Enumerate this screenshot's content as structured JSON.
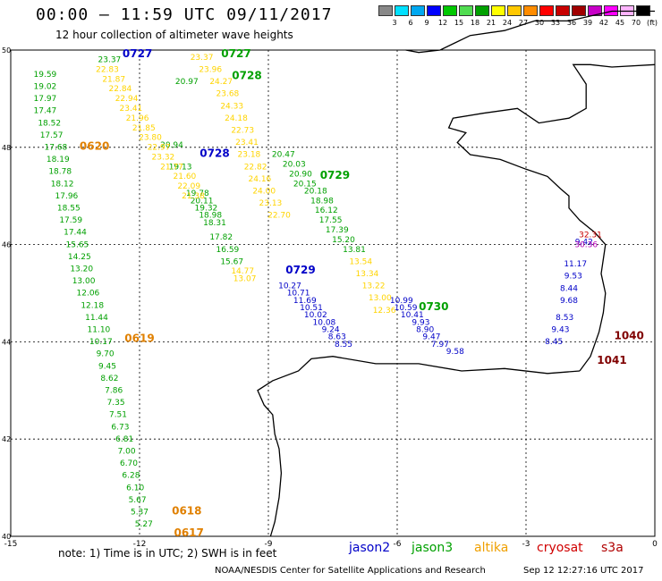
{
  "header": {
    "title": "00:00 – 11:59 UTC 09/11/2017",
    "subtitle": "12 hour collection of altimeter wave heights"
  },
  "legend": {
    "colors": [
      "#888888",
      "#00e0ff",
      "#00a8f0",
      "#0000ff",
      "#00c800",
      "#50dc50",
      "#00a000",
      "#ffff00",
      "#ffc800",
      "#ff8c00",
      "#ff0000",
      "#c80000",
      "#a00000",
      "#c800c8",
      "#ff00ff",
      "#ffb4ff",
      "#000000"
    ],
    "labels": [
      "3",
      "6",
      "9",
      "12",
      "15",
      "18",
      "21",
      "24",
      "27",
      "30",
      "33",
      "36",
      "39",
      "42",
      "45",
      "70"
    ],
    "unit": "(ft)"
  },
  "chart_data": {
    "type": "scatter",
    "title": "12 hour collection of altimeter wave heights",
    "xlabel": "",
    "ylabel": "",
    "xlim": [
      -15,
      0
    ],
    "ylim": [
      40,
      50
    ],
    "x_ticks": [
      "-15",
      "-12",
      "-9",
      "-6",
      "-3",
      "0"
    ],
    "y_ticks": [
      "40",
      "42",
      "44",
      "46",
      "48",
      "50"
    ],
    "grid": true,
    "series": [
      {
        "name": "jason3",
        "color": "#00a000",
        "points": [
          [
            -14.2,
            49.45,
            "19.59"
          ],
          [
            -14.2,
            49.2,
            "19.02"
          ],
          [
            -14.2,
            48.95,
            "17.97"
          ],
          [
            -14.2,
            48.7,
            "17.47"
          ],
          [
            -14.1,
            48.45,
            "18.52"
          ],
          [
            -14.05,
            48.2,
            "17.57"
          ],
          [
            -13.95,
            47.95,
            "17.68"
          ],
          [
            -13.9,
            47.7,
            "18.19"
          ],
          [
            -13.85,
            47.45,
            "18.78"
          ],
          [
            -13.8,
            47.2,
            "18.12"
          ],
          [
            -13.7,
            46.95,
            "17.96"
          ],
          [
            -13.65,
            46.7,
            "18.55"
          ],
          [
            -13.6,
            46.45,
            "17.59"
          ],
          [
            -13.5,
            46.2,
            "17.44"
          ],
          [
            -13.45,
            45.95,
            "15.65"
          ],
          [
            -13.4,
            45.7,
            "14.25"
          ],
          [
            -13.35,
            45.45,
            "13.20"
          ],
          [
            -13.3,
            45.2,
            "13.00"
          ],
          [
            -13.2,
            44.95,
            "12.06"
          ],
          [
            -13.1,
            44.7,
            "12.18"
          ],
          [
            -13.0,
            44.45,
            "11.44"
          ],
          [
            -12.95,
            44.2,
            "11.10"
          ],
          [
            -12.9,
            43.95,
            "10.17"
          ],
          [
            -12.8,
            43.7,
            "9.70"
          ],
          [
            -12.75,
            43.45,
            "9.45"
          ],
          [
            -12.7,
            43.2,
            "8.62"
          ],
          [
            -12.6,
            42.95,
            "7.86"
          ],
          [
            -12.55,
            42.7,
            "7.35"
          ],
          [
            -12.5,
            42.45,
            "7.51"
          ],
          [
            -12.45,
            42.2,
            "6.73"
          ],
          [
            -12.35,
            41.95,
            "6.81"
          ],
          [
            -12.3,
            41.7,
            "7.00"
          ],
          [
            -12.25,
            41.45,
            "6.70"
          ],
          [
            -12.2,
            41.2,
            "6.28"
          ],
          [
            -12.1,
            40.95,
            "6.10"
          ],
          [
            -12.05,
            40.7,
            "5.67"
          ],
          [
            -12.0,
            40.45,
            "5.37"
          ],
          [
            -11.9,
            40.2,
            "5.27"
          ],
          [
            -11.25,
            48.0,
            "20.94"
          ],
          [
            -11.05,
            47.55,
            "19.13"
          ],
          [
            -10.65,
            47.0,
            "19.78"
          ],
          [
            -10.55,
            46.85,
            "20.11"
          ],
          [
            -10.45,
            46.7,
            "19.32"
          ],
          [
            -10.35,
            46.55,
            "18.98"
          ],
          [
            -10.25,
            46.4,
            "18.31"
          ],
          [
            -10.1,
            46.1,
            "17.82"
          ],
          [
            -9.95,
            45.85,
            "16.59"
          ],
          [
            -9.85,
            45.6,
            "15.67"
          ],
          [
            -10.9,
            49.3,
            "20.97"
          ],
          [
            -12.7,
            49.75,
            "23.37"
          ],
          [
            -8.65,
            47.8,
            "20.47"
          ],
          [
            -8.4,
            47.6,
            "20.03"
          ],
          [
            -8.25,
            47.4,
            "20.90"
          ],
          [
            -8.15,
            47.2,
            "20.15"
          ],
          [
            -7.9,
            47.05,
            "20.18"
          ],
          [
            -7.75,
            46.85,
            "18.98"
          ],
          [
            -7.65,
            46.65,
            "16.12"
          ],
          [
            -7.55,
            46.45,
            "17.55"
          ],
          [
            -7.4,
            46.25,
            "17.39"
          ],
          [
            -7.25,
            46.05,
            "15.20"
          ],
          [
            -7.0,
            45.85,
            "13.81"
          ]
        ]
      },
      {
        "name": "jason2",
        "color": "#0000c8",
        "points": [
          [
            -8.5,
            45.1,
            "10.27"
          ],
          [
            -8.3,
            44.95,
            "10.71"
          ],
          [
            -8.15,
            44.8,
            "11.69"
          ],
          [
            -8.0,
            44.65,
            "10.51"
          ],
          [
            -7.9,
            44.5,
            "10.02"
          ],
          [
            -7.7,
            44.35,
            "10.08"
          ],
          [
            -7.55,
            44.2,
            "9.24"
          ],
          [
            -7.4,
            44.05,
            "8.63"
          ],
          [
            -7.25,
            43.9,
            "8.55"
          ],
          [
            -5.9,
            44.8,
            "10.99"
          ],
          [
            -5.8,
            44.65,
            "10.59"
          ],
          [
            -5.65,
            44.5,
            "10.41"
          ],
          [
            -5.45,
            44.35,
            "9.93"
          ],
          [
            -5.35,
            44.2,
            "8.90"
          ],
          [
            -5.2,
            44.05,
            "9.47"
          ],
          [
            -5.0,
            43.9,
            "7.97"
          ],
          [
            -4.65,
            43.75,
            "9.58"
          ],
          [
            -1.65,
            46.0,
            "9.42"
          ],
          [
            -1.85,
            45.55,
            "11.17"
          ],
          [
            -1.9,
            45.3,
            "9.53"
          ],
          [
            -2.0,
            45.05,
            "8.44"
          ],
          [
            -2.0,
            44.8,
            "9.68"
          ],
          [
            -2.1,
            44.45,
            "8.53"
          ],
          [
            -2.2,
            44.2,
            "9.43"
          ],
          [
            -2.35,
            43.95,
            "8.45"
          ]
        ]
      },
      {
        "name": "altika",
        "color": "#ffd400",
        "points": [
          [
            -12.75,
            49.55,
            "22.83"
          ],
          [
            -12.6,
            49.35,
            "21.87"
          ],
          [
            -12.45,
            49.15,
            "22.84"
          ],
          [
            -12.3,
            48.95,
            "22.94"
          ],
          [
            -12.2,
            48.75,
            "23.41"
          ],
          [
            -12.05,
            48.55,
            "21.96"
          ],
          [
            -11.9,
            48.35,
            "21.85"
          ],
          [
            -11.75,
            48.15,
            "23.80"
          ],
          [
            -11.55,
            47.95,
            "22.97"
          ],
          [
            -11.45,
            47.75,
            "23.32"
          ],
          [
            -11.25,
            47.55,
            "21.77"
          ],
          [
            -10.95,
            47.35,
            "21.60"
          ],
          [
            -10.85,
            47.15,
            "22.09"
          ],
          [
            -10.75,
            46.95,
            "21.38"
          ],
          [
            -10.55,
            49.8,
            "23.37"
          ],
          [
            -10.35,
            49.55,
            "23.96"
          ],
          [
            -10.1,
            49.3,
            "24.27"
          ],
          [
            -9.95,
            49.05,
            "23.68"
          ],
          [
            -9.85,
            48.8,
            "24.33"
          ],
          [
            -9.75,
            48.55,
            "24.18"
          ],
          [
            -9.6,
            48.3,
            "22.73"
          ],
          [
            -9.5,
            48.05,
            "23.41"
          ],
          [
            -9.45,
            47.8,
            "23.18"
          ],
          [
            -9.3,
            47.55,
            "22.82"
          ],
          [
            -9.2,
            47.3,
            "24.16"
          ],
          [
            -9.1,
            47.05,
            "24.00"
          ],
          [
            -8.95,
            46.8,
            "23.13"
          ],
          [
            -8.75,
            46.55,
            "22.70"
          ],
          [
            -9.6,
            45.4,
            "14.77"
          ],
          [
            -9.55,
            45.25,
            "13.07"
          ],
          [
            -6.85,
            45.6,
            "13.54"
          ],
          [
            -6.7,
            45.35,
            "13.34"
          ],
          [
            -6.55,
            45.1,
            "13.22"
          ],
          [
            -6.4,
            44.85,
            "13.00"
          ],
          [
            -6.3,
            44.6,
            "12.36"
          ]
        ]
      },
      {
        "name": "cryosat",
        "color": "#c80000",
        "points": [
          [
            -1.5,
            46.15,
            "32.31"
          ]
        ]
      },
      {
        "name": "s3a",
        "color": "#b400b4",
        "points": [
          [
            -1.6,
            45.95,
            "30.36"
          ]
        ]
      },
      {
        "name": "track-labels",
        "color": "#e08000",
        "points": []
      }
    ],
    "track_labels": [
      {
        "text": "0727",
        "x": -12.05,
        "y": 49.85,
        "color": "#0000c8"
      },
      {
        "text": "0727",
        "x": -9.75,
        "y": 49.85,
        "color": "#00a000"
      },
      {
        "text": "0728",
        "x": -9.5,
        "y": 49.4,
        "color": "#00a000"
      },
      {
        "text": "0728",
        "x": -10.25,
        "y": 47.8,
        "color": "#0000c8"
      },
      {
        "text": "0729",
        "x": -7.45,
        "y": 47.35,
        "color": "#00a000"
      },
      {
        "text": "0729",
        "x": -8.25,
        "y": 45.4,
        "color": "#0000c8"
      },
      {
        "text": "0730",
        "x": -5.15,
        "y": 44.65,
        "color": "#00a000"
      },
      {
        "text": "0620",
        "x": -13.05,
        "y": 47.95,
        "color": "#e08000"
      },
      {
        "text": "0619",
        "x": -12.0,
        "y": 44.0,
        "color": "#e08000"
      },
      {
        "text": "0618",
        "x": -10.9,
        "y": 40.45,
        "color": "#e08000"
      },
      {
        "text": "0617",
        "x": -10.85,
        "y": 40.0,
        "color": "#e08000"
      },
      {
        "text": "1040",
        "x": -0.6,
        "y": 44.05,
        "color": "#800000"
      },
      {
        "text": "1041",
        "x": -1.0,
        "y": 43.55,
        "color": "#800000"
      }
    ]
  },
  "note": "note:  1) Time is in UTC;  2) SWH is in feet",
  "satellites": [
    {
      "label": "jason2",
      "color": "#0000c8"
    },
    {
      "label": "jason3",
      "color": "#00a000"
    },
    {
      "label": "altika",
      "color": "#f0a000"
    },
    {
      "label": "cryosat",
      "color": "#d00000"
    },
    {
      "label": "s3a",
      "color": "#b00000"
    }
  ],
  "footer": "NOAA/NESDIS Center for Satellite Applications and Research",
  "timestamp": "Sep 12 12:27:16 UTC 2017"
}
